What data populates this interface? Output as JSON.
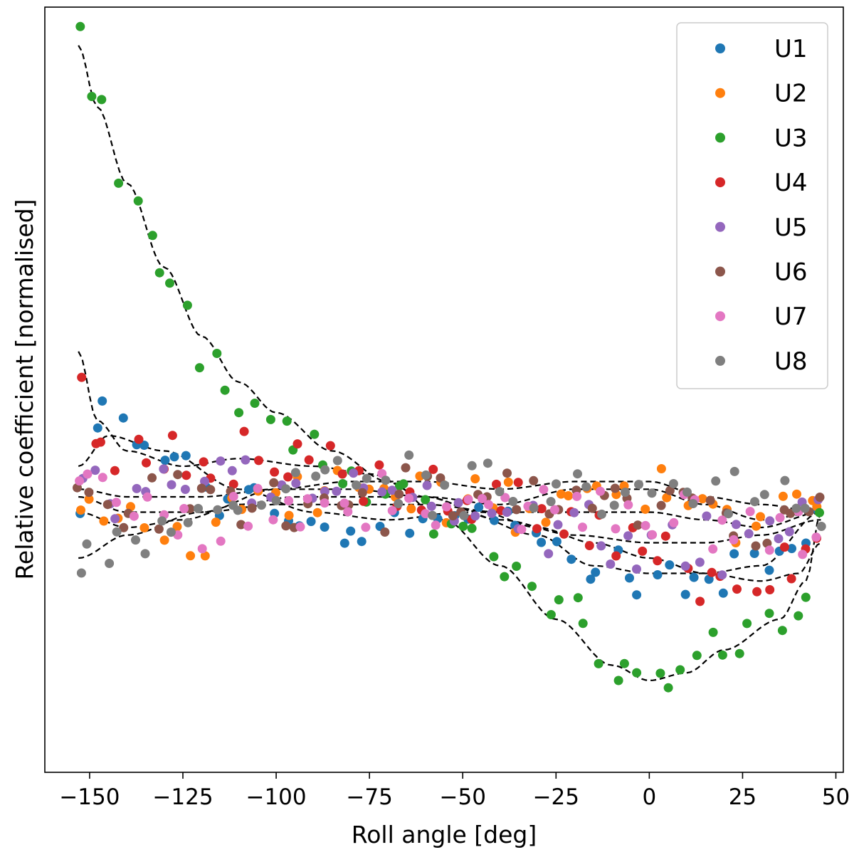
{
  "chart_data": {
    "type": "scatter",
    "title": "",
    "xlabel": "Roll angle [deg]",
    "ylabel": "Relative coefficient [normalised]",
    "xlim": [
      -162,
      52
    ],
    "ylim": [
      0,
      1
    ],
    "xticks": [
      -150,
      -125,
      -100,
      -75,
      -50,
      -25,
      0,
      25,
      50
    ],
    "xtick_labels": [
      "−150",
      "−125",
      "−100",
      "−75",
      "−50",
      "−25",
      "0",
      "25",
      "50"
    ],
    "yticks_shown": false,
    "legend_position": "top-right",
    "fit_line_style": "dashed black",
    "x_range": [
      -153,
      46
    ],
    "series": [
      {
        "name": "U1",
        "color": "#1f77b4",
        "knots": [
          [
            -153,
            0.34
          ],
          [
            -145,
            0.47
          ],
          [
            -130,
            0.41
          ],
          [
            -110,
            0.36
          ],
          [
            -90,
            0.33
          ],
          [
            -70,
            0.32
          ],
          [
            -50,
            0.35
          ],
          [
            -30,
            0.3
          ],
          [
            -15,
            0.26
          ],
          [
            0,
            0.24
          ],
          [
            15,
            0.25
          ],
          [
            30,
            0.27
          ],
          [
            46,
            0.35
          ]
        ],
        "jitter": 0.035
      },
      {
        "name": "U2",
        "color": "#ff7f0e",
        "knots": [
          [
            -153,
            0.34
          ],
          [
            -140,
            0.32
          ],
          [
            -125,
            0.31
          ],
          [
            -110,
            0.35
          ],
          [
            -95,
            0.37
          ],
          [
            -80,
            0.36
          ],
          [
            -60,
            0.36
          ],
          [
            -40,
            0.35
          ],
          [
            -20,
            0.36
          ],
          [
            0,
            0.37
          ],
          [
            15,
            0.35
          ],
          [
            30,
            0.33
          ],
          [
            46,
            0.34
          ]
        ],
        "jitter": 0.035
      },
      {
        "name": "U3",
        "color": "#2ca02c",
        "knots": [
          [
            -153,
            0.96
          ],
          [
            -148,
            0.88
          ],
          [
            -140,
            0.77
          ],
          [
            -130,
            0.65
          ],
          [
            -120,
            0.56
          ],
          [
            -110,
            0.5
          ],
          [
            -100,
            0.46
          ],
          [
            -85,
            0.41
          ],
          [
            -70,
            0.38
          ],
          [
            -55,
            0.33
          ],
          [
            -40,
            0.27
          ],
          [
            -25,
            0.21
          ],
          [
            -10,
            0.15
          ],
          [
            0,
            0.12
          ],
          [
            10,
            0.13
          ],
          [
            20,
            0.16
          ],
          [
            35,
            0.2
          ],
          [
            42,
            0.25
          ],
          [
            46,
            0.34
          ]
        ],
        "jitter": 0.03
      },
      {
        "name": "U4",
        "color": "#d62728",
        "knots": [
          [
            -153,
            0.55
          ],
          [
            -148,
            0.45
          ],
          [
            -140,
            0.41
          ],
          [
            -125,
            0.4
          ],
          [
            -110,
            0.41
          ],
          [
            -90,
            0.4
          ],
          [
            -75,
            0.39
          ],
          [
            -60,
            0.36
          ],
          [
            -45,
            0.34
          ],
          [
            -30,
            0.32
          ],
          [
            -15,
            0.3
          ],
          [
            0,
            0.28
          ],
          [
            15,
            0.26
          ],
          [
            30,
            0.25
          ],
          [
            40,
            0.27
          ],
          [
            46,
            0.3
          ]
        ],
        "jitter": 0.04
      },
      {
        "name": "U5",
        "color": "#9467bd",
        "knots": [
          [
            -153,
            0.37
          ],
          [
            -140,
            0.37
          ],
          [
            -120,
            0.37
          ],
          [
            -100,
            0.38
          ],
          [
            -80,
            0.38
          ],
          [
            -60,
            0.37
          ],
          [
            -40,
            0.34
          ],
          [
            -20,
            0.32
          ],
          [
            0,
            0.31
          ],
          [
            15,
            0.3
          ],
          [
            30,
            0.31
          ],
          [
            46,
            0.33
          ]
        ],
        "jitter": 0.035
      },
      {
        "name": "U6",
        "color": "#8c564b",
        "knots": [
          [
            -153,
            0.37
          ],
          [
            -140,
            0.35
          ],
          [
            -120,
            0.35
          ],
          [
            -100,
            0.35
          ],
          [
            -80,
            0.36
          ],
          [
            -60,
            0.36
          ],
          [
            -40,
            0.35
          ],
          [
            -20,
            0.36
          ],
          [
            0,
            0.36
          ],
          [
            15,
            0.34
          ],
          [
            30,
            0.32
          ],
          [
            46,
            0.34
          ]
        ],
        "jitter": 0.035
      },
      {
        "name": "U7",
        "color": "#e377c2",
        "knots": [
          [
            -153,
            0.38
          ],
          [
            -140,
            0.34
          ],
          [
            -120,
            0.33
          ],
          [
            -100,
            0.35
          ],
          [
            -80,
            0.36
          ],
          [
            -60,
            0.35
          ],
          [
            -40,
            0.34
          ],
          [
            -20,
            0.34
          ],
          [
            0,
            0.33
          ],
          [
            15,
            0.32
          ],
          [
            30,
            0.32
          ],
          [
            46,
            0.33
          ]
        ],
        "jitter": 0.035
      },
      {
        "name": "U8",
        "color": "#7f7f7f",
        "knots": [
          [
            -153,
            0.27
          ],
          [
            -140,
            0.3
          ],
          [
            -120,
            0.34
          ],
          [
            -100,
            0.37
          ],
          [
            -80,
            0.39
          ],
          [
            -60,
            0.38
          ],
          [
            -40,
            0.37
          ],
          [
            -20,
            0.38
          ],
          [
            0,
            0.37
          ],
          [
            15,
            0.36
          ],
          [
            30,
            0.35
          ],
          [
            46,
            0.34
          ]
        ],
        "jitter": 0.035
      }
    ],
    "fit_curves": [
      [
        [
          -153,
          0.95
        ],
        [
          -148,
          0.87
        ],
        [
          -140,
          0.77
        ],
        [
          -130,
          0.66
        ],
        [
          -120,
          0.57
        ],
        [
          -110,
          0.51
        ],
        [
          -100,
          0.47
        ],
        [
          -85,
          0.42
        ],
        [
          -70,
          0.38
        ],
        [
          -55,
          0.33
        ],
        [
          -40,
          0.27
        ],
        [
          -25,
          0.2
        ],
        [
          -10,
          0.14
        ],
        [
          0,
          0.12
        ],
        [
          10,
          0.13
        ],
        [
          20,
          0.16
        ],
        [
          35,
          0.2
        ],
        [
          42,
          0.25
        ],
        [
          46,
          0.34
        ]
      ],
      [
        [
          -153,
          0.55
        ],
        [
          -148,
          0.46
        ],
        [
          -140,
          0.42
        ],
        [
          -125,
          0.4
        ],
        [
          -110,
          0.41
        ],
        [
          -90,
          0.4
        ],
        [
          -75,
          0.39
        ],
        [
          -60,
          0.36
        ],
        [
          -45,
          0.34
        ],
        [
          -30,
          0.32
        ],
        [
          -15,
          0.3
        ],
        [
          0,
          0.28
        ],
        [
          15,
          0.26
        ],
        [
          30,
          0.25
        ],
        [
          40,
          0.26
        ],
        [
          46,
          0.3
        ]
      ],
      [
        [
          -153,
          0.4
        ],
        [
          -145,
          0.44
        ],
        [
          -130,
          0.42
        ],
        [
          -110,
          0.37
        ],
        [
          -90,
          0.34
        ],
        [
          -70,
          0.33
        ],
        [
          -50,
          0.34
        ],
        [
          -30,
          0.31
        ],
        [
          -15,
          0.27
        ],
        [
          0,
          0.26
        ],
        [
          15,
          0.26
        ],
        [
          30,
          0.27
        ],
        [
          46,
          0.34
        ]
      ],
      [
        [
          -153,
          0.34
        ],
        [
          -140,
          0.32
        ],
        [
          -125,
          0.33
        ],
        [
          -110,
          0.35
        ],
        [
          -95,
          0.36
        ],
        [
          -80,
          0.36
        ],
        [
          -60,
          0.36
        ],
        [
          -40,
          0.35
        ],
        [
          -20,
          0.37
        ],
        [
          0,
          0.37
        ],
        [
          15,
          0.35
        ],
        [
          30,
          0.33
        ],
        [
          46,
          0.34
        ]
      ],
      [
        [
          -153,
          0.28
        ],
        [
          -140,
          0.31
        ],
        [
          -120,
          0.34
        ],
        [
          -100,
          0.37
        ],
        [
          -80,
          0.38
        ],
        [
          -60,
          0.38
        ],
        [
          -40,
          0.37
        ],
        [
          -20,
          0.38
        ],
        [
          0,
          0.38
        ],
        [
          15,
          0.36
        ],
        [
          30,
          0.35
        ],
        [
          46,
          0.34
        ]
      ],
      [
        [
          -153,
          0.37
        ],
        [
          -140,
          0.36
        ],
        [
          -120,
          0.36
        ],
        [
          -100,
          0.37
        ],
        [
          -80,
          0.37
        ],
        [
          -60,
          0.36
        ],
        [
          -40,
          0.33
        ],
        [
          -20,
          0.31
        ],
        [
          0,
          0.3
        ],
        [
          15,
          0.3
        ],
        [
          30,
          0.31
        ],
        [
          46,
          0.33
        ]
      ],
      [
        [
          -153,
          0.36
        ],
        [
          -140,
          0.34
        ],
        [
          -120,
          0.34
        ],
        [
          -100,
          0.35
        ],
        [
          -80,
          0.35
        ],
        [
          -60,
          0.35
        ],
        [
          -40,
          0.34
        ],
        [
          -20,
          0.34
        ],
        [
          0,
          0.34
        ],
        [
          15,
          0.33
        ],
        [
          30,
          0.32
        ],
        [
          46,
          0.34
        ]
      ]
    ]
  }
}
